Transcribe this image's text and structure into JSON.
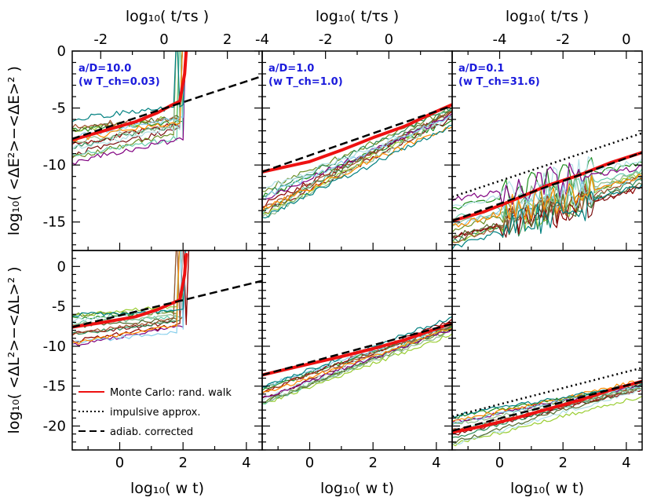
{
  "figure": {
    "top_xlabel": "log₁₀( t/τs )",
    "bottom_xlabel": "log₁₀( w t)",
    "row_labels": [
      "log₁₀( <ΔE²>−<ΔE>² )",
      "log₁₀( <ΔL²>−<ΔL>² )"
    ]
  },
  "legend": {
    "items": [
      {
        "label": "Monte Carlo: rand. walk",
        "color": "#ee1111",
        "style": "solid"
      },
      {
        "label": "impulsive approx.",
        "color": "#000000",
        "style": "dotted"
      },
      {
        "label": "adiab. corrected",
        "color": "#000000",
        "style": "dashed"
      }
    ]
  },
  "colors": {
    "monte_carlo": "#ee1111",
    "panel_label": "#1a1adc",
    "realizations": [
      "#1e8c1e",
      "#7a1010",
      "#9acd32",
      "#6b8e23",
      "#2e8b57",
      "#8b0000",
      "#66cdaa",
      "#b0e0e6",
      "#556b2f",
      "#a0522d",
      "#8fbc8f",
      "#800080",
      "#87ceeb",
      "#ff8c00",
      "#008080"
    ]
  },
  "chart_data": [
    {
      "type": "line",
      "row": 0,
      "col": 0,
      "label_line1": "a/D=10.0",
      "label_line2": "(w T_ch=0.03)",
      "xlim": [
        -1.5,
        4.5
      ],
      "ylim": [
        -17.5,
        0
      ],
      "x_ticks": [
        "0",
        "2",
        "4"
      ],
      "x_tick_values": [
        0,
        2,
        4
      ],
      "y_ticks": [
        "0",
        "-5",
        "-10",
        "-15"
      ],
      "y_tick_values": [
        0,
        -5,
        -10,
        -15
      ],
      "top_ticks": [
        "-2",
        "0",
        "2"
      ],
      "top_tick_values": [
        -2,
        0,
        2
      ],
      "top_xlim": [
        -2.9,
        3.1
      ],
      "mc": {
        "x": [
          -1.5,
          -0.5,
          0.5,
          1.2,
          1.6,
          1.9,
          2.05,
          2.1
        ],
        "y": [
          -7.8,
          -7.0,
          -6.2,
          -5.4,
          -4.8,
          -4.4,
          -2.0,
          0
        ]
      },
      "adiabatic": {
        "x": [
          -1.5,
          4.5
        ],
        "y": [
          -7.7,
          -2.2
        ]
      },
      "impulsive": null,
      "bundle": {
        "start": -7.8,
        "end": -5.4,
        "spread": 2.0,
        "blowup_x": 1.7
      }
    },
    {
      "type": "line",
      "row": 0,
      "col": 1,
      "label_line1": "a/D=1.0",
      "label_line2": "(w T_ch=1.0)",
      "xlim": [
        -1.5,
        4.5
      ],
      "ylim": [
        -17.5,
        0
      ],
      "x_ticks": [
        "0",
        "2",
        "4"
      ],
      "x_tick_values": [
        0,
        2,
        4
      ],
      "y_ticks": [],
      "y_tick_values": [],
      "top_ticks": [
        "-4",
        "-2",
        "0"
      ],
      "top_tick_values": [
        -4,
        -2,
        0
      ],
      "top_xlim": [
        -4.0,
        2.0
      ],
      "mc": {
        "x": [
          -1.5,
          0,
          1,
          2,
          3,
          4,
          4.5
        ],
        "y": [
          -10.6,
          -9.7,
          -8.7,
          -7.6,
          -6.6,
          -5.3,
          -4.7
        ]
      },
      "adiabatic": {
        "x": [
          -1.5,
          4.5
        ],
        "y": [
          -10.6,
          -4.8
        ]
      },
      "impulsive": null,
      "bundle": {
        "start": -13.5,
        "end": -5.6,
        "spread": 1.4,
        "blowup_x": null
      }
    },
    {
      "type": "line",
      "row": 0,
      "col": 2,
      "label_line1": "a/D=0.1",
      "label_line2": "(w T_ch=31.6)",
      "xlim": [
        -1.5,
        4.5
      ],
      "ylim": [
        -17.5,
        0
      ],
      "x_ticks": [
        "0",
        "2",
        "4"
      ],
      "x_tick_values": [
        0,
        2,
        4
      ],
      "y_ticks": [],
      "y_tick_values": [],
      "top_ticks": [
        "-4",
        "-2",
        "0"
      ],
      "top_tick_values": [
        -4,
        -2,
        0
      ],
      "top_xlim": [
        -5.5,
        0.5
      ],
      "mc": {
        "x": [
          -1.5,
          -0.5,
          0.5,
          1.5,
          2.5,
          3.5,
          4.5
        ],
        "y": [
          -14.9,
          -14.1,
          -13.0,
          -11.8,
          -10.9,
          -9.8,
          -8.9
        ]
      },
      "adiabatic": {
        "x": [
          -1.5,
          4.5
        ],
        "y": [
          -14.9,
          -8.9
        ]
      },
      "impulsive": {
        "x": [
          -1.5,
          4.5
        ],
        "y": [
          -12.8,
          -7.2
        ]
      },
      "bundle": {
        "start": -15.2,
        "end": -10.8,
        "spread": 2.4,
        "blowup_x": null
      }
    },
    {
      "type": "line",
      "row": 1,
      "col": 0,
      "label_line1": "",
      "label_line2": "",
      "xlim": [
        -1.5,
        4.5
      ],
      "ylim": [
        -23,
        2
      ],
      "x_ticks": [
        "0",
        "2",
        "4"
      ],
      "x_tick_values": [
        0,
        2,
        4
      ],
      "y_ticks": [
        "0",
        "-5",
        "-10",
        "-15",
        "-20"
      ],
      "y_tick_values": [
        0,
        -5,
        -10,
        -15,
        -20
      ],
      "top_ticks": [],
      "top_tick_values": [],
      "top_xlim": [
        -2.9,
        3.1
      ],
      "mc": {
        "x": [
          -1.5,
          -0.5,
          0.5,
          1.2,
          1.6,
          1.9,
          2.05,
          2.1
        ],
        "y": [
          -7.6,
          -7.0,
          -6.3,
          -5.4,
          -4.7,
          -4.2,
          -1.0,
          1.5
        ]
      },
      "adiabatic": {
        "x": [
          -1.5,
          4.5
        ],
        "y": [
          -7.6,
          -1.8
        ]
      },
      "impulsive": null,
      "bundle": {
        "start": -8.0,
        "end": -5.6,
        "spread": 2.2,
        "blowup_x": 1.7
      }
    },
    {
      "type": "line",
      "row": 1,
      "col": 1,
      "label_line1": "",
      "label_line2": "",
      "xlim": [
        -1.5,
        4.5
      ],
      "ylim": [
        -23,
        2
      ],
      "x_ticks": [
        "0",
        "2",
        "4"
      ],
      "x_tick_values": [
        0,
        2,
        4
      ],
      "y_ticks": [],
      "y_tick_values": [],
      "top_ticks": [],
      "top_tick_values": [],
      "top_xlim": [
        -4.0,
        2.0
      ],
      "mc": {
        "x": [
          -1.5,
          0,
          1,
          2,
          3,
          4,
          4.5
        ],
        "y": [
          -13.6,
          -12.2,
          -11.3,
          -10.3,
          -9.2,
          -7.8,
          -7.1
        ]
      },
      "adiabatic": {
        "x": [
          -1.5,
          4.5
        ],
        "y": [
          -13.6,
          -7.2
        ]
      },
      "impulsive": null,
      "bundle": {
        "start": -16.5,
        "end": -7.6,
        "spread": 1.4,
        "blowup_x": null
      }
    },
    {
      "type": "line",
      "row": 1,
      "col": 2,
      "label_line1": "",
      "label_line2": "",
      "xlim": [
        -1.5,
        4.5
      ],
      "ylim": [
        -23,
        2
      ],
      "x_ticks": [
        "0",
        "2",
        "4"
      ],
      "x_tick_values": [
        0,
        2,
        4
      ],
      "y_ticks": [],
      "y_tick_values": [],
      "top_ticks": [],
      "top_tick_values": [],
      "top_xlim": [
        -5.5,
        0.5
      ],
      "mc": {
        "x": [
          -1.5,
          -0.5,
          0.5,
          1.5,
          2.5,
          3.5,
          4.5
        ],
        "y": [
          -20.8,
          -20.0,
          -19.0,
          -17.9,
          -16.8,
          -15.5,
          -14.4
        ]
      },
      "adiabatic": {
        "x": [
          -1.5,
          4.5
        ],
        "y": [
          -20.6,
          -14.4
        ]
      },
      "impulsive": {
        "x": [
          -1.5,
          4.5
        ],
        "y": [
          -18.8,
          -12.7
        ]
      },
      "bundle": {
        "start": -21.0,
        "end": -15.2,
        "spread": 2.6,
        "blowup_x": null
      }
    }
  ]
}
